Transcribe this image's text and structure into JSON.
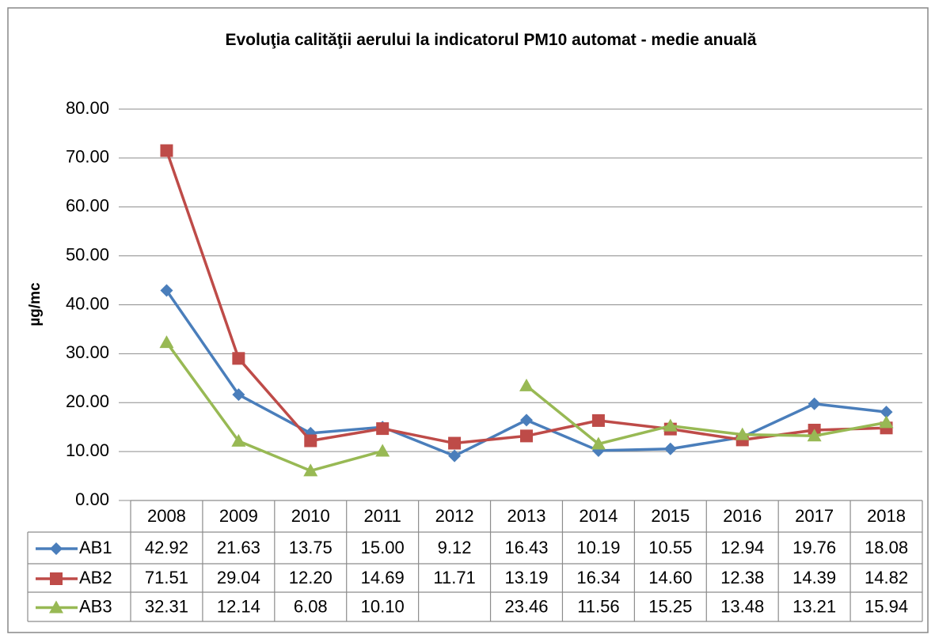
{
  "chart_data": {
    "type": "line",
    "title": "Evoluţia calităţii aerului la indicatorul PM10 automat - medie anuală",
    "y_label": "µg/mc",
    "categories": [
      "2008",
      "2009",
      "2010",
      "2011",
      "2012",
      "2013",
      "2014",
      "2015",
      "2016",
      "2017",
      "2018"
    ],
    "series": [
      {
        "name": "AB1",
        "color": "#4a7ebb",
        "marker": "diamond",
        "values": [
          42.92,
          21.63,
          13.75,
          15.0,
          9.12,
          16.43,
          10.19,
          10.55,
          12.94,
          19.76,
          18.08
        ],
        "value_labels": [
          "42.92",
          "21.63",
          "13.75",
          "15.00",
          "9.12",
          "16.43",
          "10.19",
          "10.55",
          "12.94",
          "19.76",
          "18.08"
        ]
      },
      {
        "name": "AB2",
        "color": "#be4b48",
        "marker": "square",
        "values": [
          71.51,
          29.04,
          12.2,
          14.69,
          11.71,
          13.19,
          16.34,
          14.6,
          12.38,
          14.39,
          14.82
        ],
        "value_labels": [
          "71.51",
          "29.04",
          "12.20",
          "14.69",
          "11.71",
          "13.19",
          "16.34",
          "14.60",
          "12.38",
          "14.39",
          "14.82"
        ]
      },
      {
        "name": "AB3",
        "color": "#98b954",
        "marker": "triangle",
        "values": [
          32.31,
          12.14,
          6.08,
          10.1,
          null,
          23.46,
          11.56,
          15.25,
          13.48,
          13.21,
          15.94
        ],
        "value_labels": [
          "32.31",
          "12.14",
          "6.08",
          "10.10",
          null,
          "23.46",
          "11.56",
          "15.25",
          "13.48",
          "13.21",
          "15.94"
        ]
      }
    ],
    "ylim": [
      0,
      80
    ],
    "yticks": [
      {
        "value": 0,
        "label": "0.00"
      },
      {
        "value": 10,
        "label": "10.00"
      },
      {
        "value": 20,
        "label": "20.00"
      },
      {
        "value": 30,
        "label": "30.00"
      },
      {
        "value": 40,
        "label": "40.00"
      },
      {
        "value": 50,
        "label": "50.00"
      },
      {
        "value": 60,
        "label": "60.00"
      },
      {
        "value": 70,
        "label": "70.00"
      },
      {
        "value": 80,
        "label": "80.00"
      }
    ],
    "grid": true
  }
}
